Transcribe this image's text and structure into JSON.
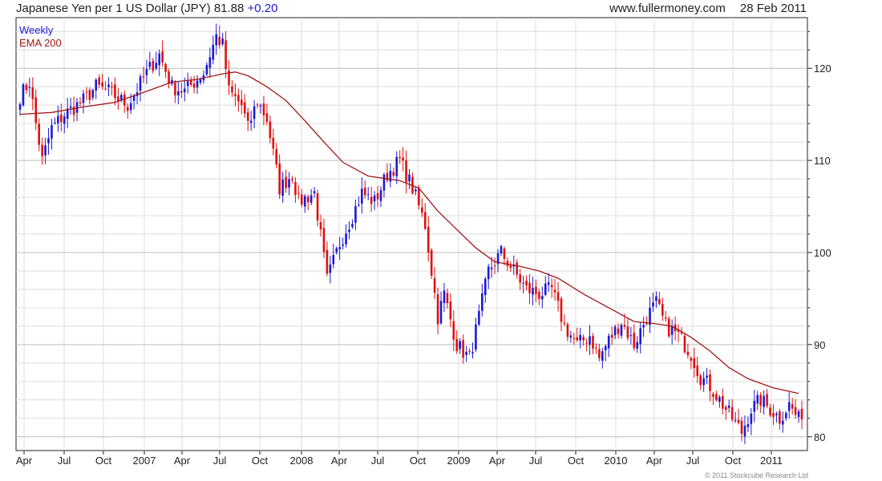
{
  "header": {
    "title": "Japanese Yen per 1 US Dollar (JPY)",
    "last_value": "81.88",
    "change": "+0.20",
    "source": "www.fullermoney.com",
    "date": "28 Feb 2011"
  },
  "legend": {
    "series": "Weekly",
    "ema": "EMA 200"
  },
  "copyright": "© 2011 Stockcube Research Ltd",
  "colors": {
    "up": "#1a1ad6",
    "down": "#e01010",
    "ema": "#a01818",
    "grid": "#dcdcdc",
    "axis": "#222222"
  },
  "chart_data": {
    "type": "candlestick",
    "x_labels": [
      "Apr",
      "Jul",
      "Oct",
      "2007",
      "Apr",
      "Jul",
      "Oct",
      "2008",
      "Apr",
      "Jul",
      "Oct",
      "2009",
      "Apr",
      "Jul",
      "Oct",
      "2010",
      "Apr",
      "Jul",
      "Oct",
      "2011"
    ],
    "y_ticks": [
      80,
      90,
      100,
      110,
      120
    ],
    "ylim": [
      78.5,
      125.5
    ],
    "grid": true,
    "weekly_close_anchors": [
      [
        0,
        117
      ],
      [
        3,
        118.5
      ],
      [
        5,
        114
      ],
      [
        7,
        110
      ],
      [
        10,
        113.5
      ],
      [
        14,
        115
      ],
      [
        20,
        116.5
      ],
      [
        24,
        118
      ],
      [
        28,
        117.5
      ],
      [
        34,
        116
      ],
      [
        40,
        119.5
      ],
      [
        44,
        121.5
      ],
      [
        48,
        118
      ],
      [
        52,
        117.5
      ],
      [
        58,
        119.5
      ],
      [
        62,
        123.5
      ],
      [
        64,
        122.5
      ],
      [
        66,
        117.5
      ],
      [
        70,
        116
      ],
      [
        72,
        113.5
      ],
      [
        75,
        116.5
      ],
      [
        78,
        114.5
      ],
      [
        82,
        107
      ],
      [
        86,
        108.5
      ],
      [
        88,
        105.5
      ],
      [
        93,
        106.5
      ],
      [
        97,
        97
      ],
      [
        101,
        101
      ],
      [
        105,
        104
      ],
      [
        108,
        106.5
      ],
      [
        112,
        105.5
      ],
      [
        116,
        108.5
      ],
      [
        120,
        110
      ],
      [
        124,
        107
      ],
      [
        128,
        103
      ],
      [
        132,
        93
      ],
      [
        134,
        95.5
      ],
      [
        138,
        90
      ],
      [
        142,
        88.5
      ],
      [
        145,
        93
      ],
      [
        148,
        98
      ],
      [
        152,
        100
      ],
      [
        155,
        98.5
      ],
      [
        160,
        96
      ],
      [
        164,
        95.5
      ],
      [
        168,
        96
      ],
      [
        172,
        92
      ],
      [
        176,
        90
      ],
      [
        180,
        91
      ],
      [
        183,
        88.5
      ],
      [
        186,
        90.5
      ],
      [
        190,
        92.5
      ],
      [
        194,
        90
      ],
      [
        198,
        93
      ],
      [
        201,
        94.5
      ],
      [
        204,
        92
      ],
      [
        208,
        91
      ],
      [
        212,
        89
      ],
      [
        215,
        86.5
      ],
      [
        218,
        85.5
      ],
      [
        222,
        83.5
      ],
      [
        226,
        81.5
      ],
      [
        228,
        80.5
      ],
      [
        231,
        83
      ],
      [
        234,
        84
      ],
      [
        237,
        83
      ],
      [
        240,
        82
      ],
      [
        243,
        83.5
      ],
      [
        246,
        81.88
      ]
    ],
    "ema_points": [
      [
        0,
        115
      ],
      [
        10,
        115.2
      ],
      [
        20,
        115.8
      ],
      [
        30,
        116.3
      ],
      [
        40,
        117.5
      ],
      [
        48,
        118.5
      ],
      [
        56,
        118.8
      ],
      [
        64,
        119.4
      ],
      [
        68,
        119.6
      ],
      [
        72,
        119.2
      ],
      [
        78,
        118
      ],
      [
        84,
        116.5
      ],
      [
        90,
        114.3
      ],
      [
        96,
        112
      ],
      [
        102,
        109.8
      ],
      [
        110,
        108.3
      ],
      [
        120,
        107.8
      ],
      [
        126,
        107
      ],
      [
        132,
        104.5
      ],
      [
        138,
        102.5
      ],
      [
        144,
        100.5
      ],
      [
        150,
        99
      ],
      [
        158,
        98.5
      ],
      [
        164,
        98
      ],
      [
        170,
        97.2
      ],
      [
        178,
        95.5
      ],
      [
        186,
        94
      ],
      [
        194,
        92.5
      ],
      [
        200,
        92.3
      ],
      [
        206,
        92
      ],
      [
        212,
        90.8
      ],
      [
        218,
        89.3
      ],
      [
        224,
        87.5
      ],
      [
        230,
        86.3
      ],
      [
        238,
        85.3
      ],
      [
        246,
        84.7
      ]
    ]
  }
}
